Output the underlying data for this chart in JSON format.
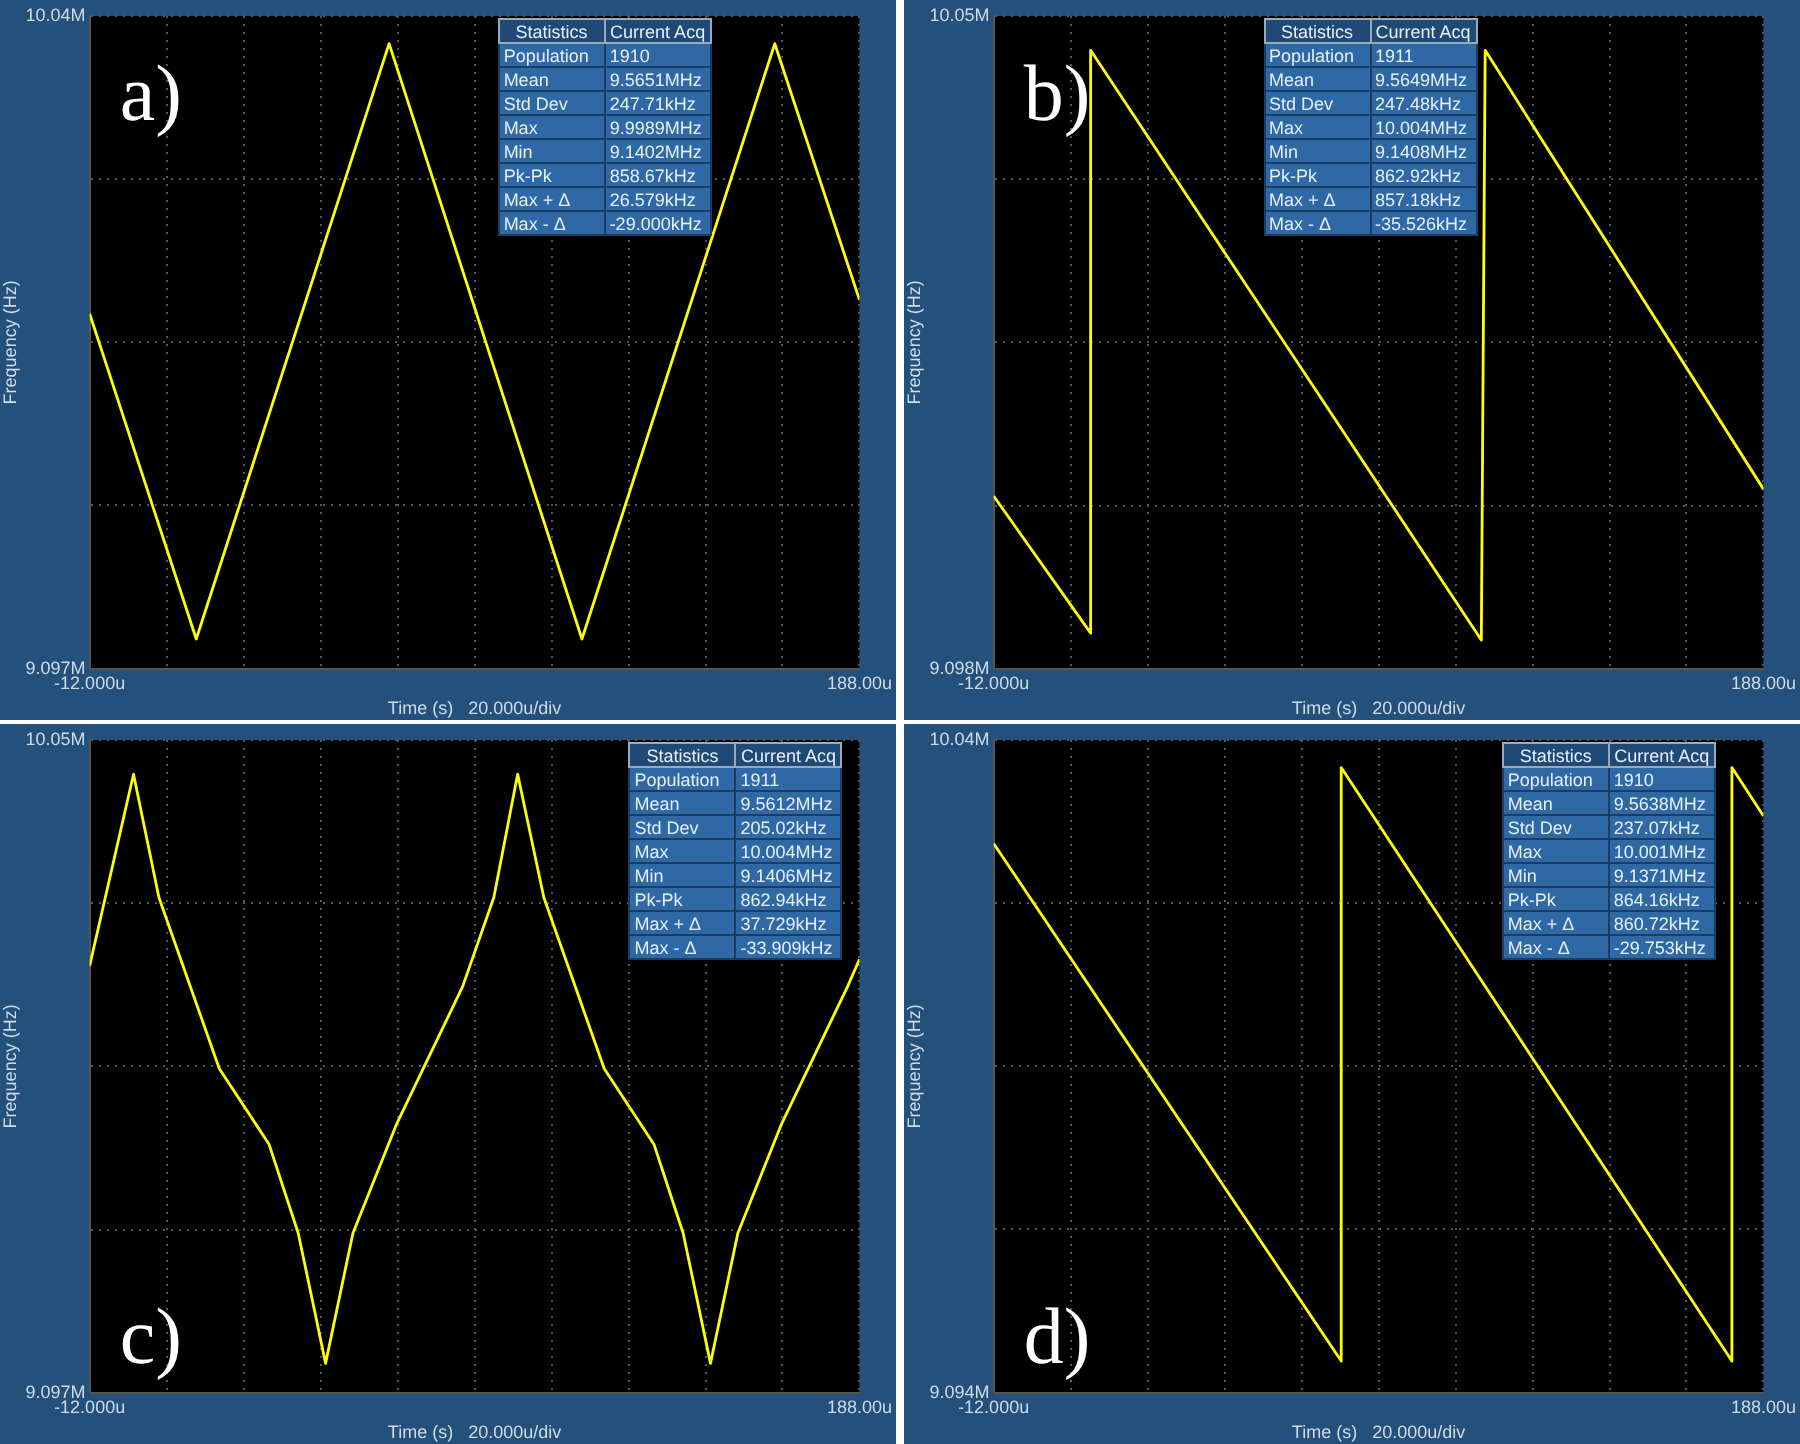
{
  "chart_data": [
    {
      "type": "line",
      "title": "a)",
      "xlabel": "Time (s)   20.000u/div",
      "ylabel": "Frequency (Hz)",
      "annotations": [
        "Statistics",
        "Current Acq",
        "Population",
        "1910",
        "Mean",
        "9.5651MHz",
        "Std Dev",
        "247.71kHz",
        "Max",
        "9.9989MHz",
        "Min",
        "9.1402MHz",
        "Pk-Pk",
        "858.67kHz",
        "Max + Δ",
        "26.579kHz",
        "Max - Δ",
        "-29.000kHz"
      ],
      "x": [
        -12,
        15.7,
        65.8,
        115.9,
        166,
        188
      ],
      "series": [
        {
          "color": "#ffff00",
          "values": [
            9.61,
            9.14,
            10.0,
            9.14,
            10.0,
            9.63
          ]
        }
      ],
      "xlim": [
        -12,
        188
      ],
      "xticks": [
        {
          "value": -12,
          "label": "-12.000u"
        },
        {
          "value": 8,
          "label": null
        },
        {
          "value": 28,
          "label": null
        },
        {
          "value": 48,
          "label": null
        },
        {
          "value": 68,
          "label": null
        },
        {
          "value": 88,
          "label": null
        },
        {
          "value": 108,
          "label": null
        },
        {
          "value": 128,
          "label": null
        },
        {
          "value": 148,
          "label": null
        },
        {
          "value": 168,
          "label": null
        },
        {
          "value": 188,
          "label": "188.00u"
        }
      ],
      "ylim": [
        9.097,
        10.04
      ],
      "yticks": [
        {
          "value": 9.097,
          "label": "9.097M"
        },
        {
          "value": 9.333,
          "label": null
        },
        {
          "value": 9.569,
          "label": null
        },
        {
          "value": 9.804,
          "label": null
        },
        {
          "value": 10.04,
          "label": "10.04M"
        }
      ],
      "grid": true
    },
    {
      "type": "line",
      "title": "b)",
      "xlabel": "Time (s)   20.000u/div",
      "ylabel": "Frequency (Hz)",
      "annotations": [
        "Statistics",
        "Current Acq",
        "Population",
        "1911",
        "Mean",
        "9.5649MHz",
        "Std Dev",
        "247.48kHz",
        "Max",
        "10.004MHz",
        "Min",
        "9.1408MHz",
        "Pk-Pk",
        "862.92kHz",
        "Max + Δ",
        "857.18kHz",
        "Max - Δ",
        "-35.526kHz"
      ],
      "x": [
        -12,
        13.2,
        13.2,
        114.7,
        115.7,
        188
      ],
      "series": [
        {
          "color": "#ffff00",
          "values": [
            9.35,
            9.15,
            10.0,
            9.14,
            10.0,
            9.36
          ]
        }
      ],
      "xlim": [
        -12,
        188
      ],
      "xticks": [
        {
          "value": -12,
          "label": "-12.000u"
        },
        {
          "value": 8,
          "label": null
        },
        {
          "value": 28,
          "label": null
        },
        {
          "value": 48,
          "label": null
        },
        {
          "value": 68,
          "label": null
        },
        {
          "value": 88,
          "label": null
        },
        {
          "value": 108,
          "label": null
        },
        {
          "value": 128,
          "label": null
        },
        {
          "value": 148,
          "label": null
        },
        {
          "value": 168,
          "label": null
        },
        {
          "value": 188,
          "label": "188.00u"
        }
      ],
      "ylim": [
        9.098,
        10.05
      ],
      "yticks": [
        {
          "value": 9.098,
          "label": "9.098M"
        },
        {
          "value": 9.336,
          "label": null
        },
        {
          "value": 9.574,
          "label": null
        },
        {
          "value": 9.812,
          "label": null
        },
        {
          "value": 10.05,
          "label": "10.05M"
        }
      ],
      "grid": true
    },
    {
      "type": "line",
      "title": "c)",
      "xlabel": "Time (s)   20.000u/div",
      "ylabel": "Frequency (Hz)",
      "annotations": [
        "Statistics",
        "Current Acq",
        "Population",
        "1911",
        "Mean",
        "9.5612MHz",
        "Std Dev",
        "205.02kHz",
        "Max",
        "10.004MHz",
        "Min",
        "9.1406MHz",
        "Pk-Pk",
        "862.94kHz",
        "Max + Δ",
        "37.729kHz",
        "Max - Δ",
        "-33.909kHz"
      ],
      "x": [
        -12,
        -0.6,
        6.0,
        21.7,
        34.6,
        42.2,
        49.3,
        56.4,
        67.8,
        84.9,
        93.0,
        99.2,
        106.0,
        121.7,
        134.6,
        142.2,
        149.3,
        156.4,
        167.8,
        184.9,
        188
      ],
      "series": [
        {
          "color": "#ffff00",
          "values": [
            9.72,
            10.0,
            9.82,
            9.57,
            9.46,
            9.33,
            9.14,
            9.33,
            9.49,
            9.69,
            9.82,
            10.0,
            9.82,
            9.57,
            9.46,
            9.33,
            9.14,
            9.33,
            9.49,
            9.69,
            9.73
          ]
        }
      ],
      "xlim": [
        -12,
        188
      ],
      "xticks": [
        {
          "value": -12,
          "label": "-12.000u"
        },
        {
          "value": 8,
          "label": null
        },
        {
          "value": 28,
          "label": null
        },
        {
          "value": 48,
          "label": null
        },
        {
          "value": 68,
          "label": null
        },
        {
          "value": 88,
          "label": null
        },
        {
          "value": 108,
          "label": null
        },
        {
          "value": 128,
          "label": null
        },
        {
          "value": 148,
          "label": null
        },
        {
          "value": 168,
          "label": null
        },
        {
          "value": 188,
          "label": "188.00u"
        }
      ],
      "ylim": [
        9.097,
        10.05
      ],
      "yticks": [
        {
          "value": 9.097,
          "label": "9.097M"
        },
        {
          "value": 9.335,
          "label": null
        },
        {
          "value": 9.574,
          "label": null
        },
        {
          "value": 9.812,
          "label": null
        },
        {
          "value": 10.05,
          "label": "10.05M"
        }
      ],
      "grid": true
    },
    {
      "type": "line",
      "title": "d)",
      "xlabel": "Time (s)   20.000u/div",
      "ylabel": "Frequency (Hz)",
      "annotations": [
        "Statistics",
        "Current Acq",
        "Population",
        "1910",
        "Mean",
        "9.5638MHz",
        "Std Dev",
        "237.07kHz",
        "Max",
        "10.001MHz",
        "Min",
        "9.1371MHz",
        "Pk-Pk",
        "864.16kHz",
        "Max + Δ",
        "860.72kHz",
        "Max - Δ",
        "-29.753kHz"
      ],
      "x": [
        -12,
        78.3,
        78.3,
        179.8,
        179.8,
        188
      ],
      "series": [
        {
          "color": "#ffff00",
          "values": [
            9.89,
            9.14,
            10.0,
            9.14,
            10.0,
            9.93
          ]
        }
      ],
      "xlim": [
        -12,
        188
      ],
      "xticks": [
        {
          "value": -12,
          "label": "-12.000u"
        },
        {
          "value": 8,
          "label": null
        },
        {
          "value": 28,
          "label": null
        },
        {
          "value": 48,
          "label": null
        },
        {
          "value": 68,
          "label": null
        },
        {
          "value": 88,
          "label": null
        },
        {
          "value": 108,
          "label": null
        },
        {
          "value": 128,
          "label": null
        },
        {
          "value": 148,
          "label": null
        },
        {
          "value": 168,
          "label": null
        },
        {
          "value": 188,
          "label": "188.00u"
        }
      ],
      "ylim": [
        9.094,
        10.04
      ],
      "yticks": [
        {
          "value": 9.094,
          "label": "9.094M"
        },
        {
          "value": 9.331,
          "label": null
        },
        {
          "value": 9.567,
          "label": null
        },
        {
          "value": 9.804,
          "label": null
        },
        {
          "value": 10.04,
          "label": "10.04M"
        }
      ],
      "grid": true
    }
  ]
}
